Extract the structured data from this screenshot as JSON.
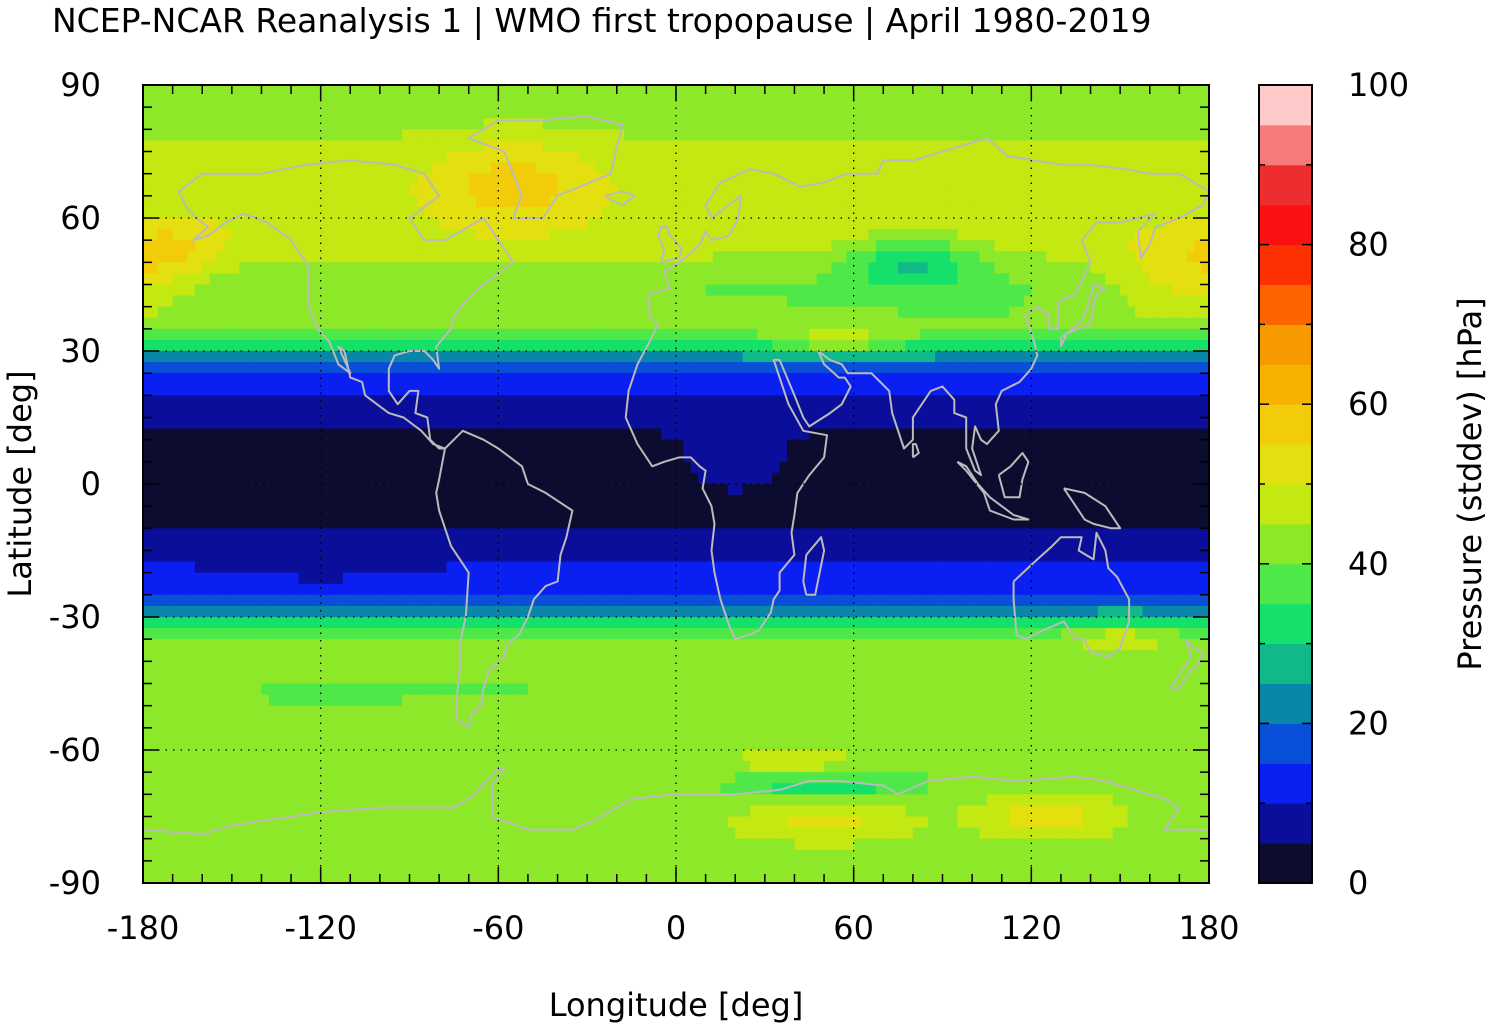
{
  "chart_data": {
    "type": "heatmap",
    "title": "NCEP-NCAR Reanalysis 1 | WMO first tropopause | April 1980-2019",
    "xlabel": "Longitude [deg]",
    "ylabel": "Latitude [deg]",
    "colorbar_label": "Pressure (stddev) [hPa]",
    "xlim": [
      -180,
      180
    ],
    "ylim": [
      -90,
      90
    ],
    "x_ticks": [
      -180,
      -120,
      -60,
      0,
      60,
      120,
      180
    ],
    "y_ticks": [
      90,
      60,
      30,
      0,
      -30,
      -60,
      -90
    ],
    "colorbar_range": [
      0,
      100
    ],
    "colorbar_ticks": [
      0,
      20,
      40,
      60,
      80,
      100
    ],
    "grid": true,
    "coastlines": true,
    "latitudes": [
      85,
      75,
      65,
      55,
      45,
      35,
      25,
      15,
      5,
      -5,
      -15,
      -25,
      -35,
      -45,
      -55,
      -65,
      -75,
      -85
    ],
    "zonal_mean_stddev": [
      42,
      46,
      48,
      48,
      40,
      40,
      14,
      6,
      3,
      3,
      8,
      14,
      42,
      40,
      40,
      42,
      44,
      42
    ],
    "colormap": [
      {
        "from": 0,
        "to": 5,
        "color": "#0c0c30"
      },
      {
        "from": 5,
        "to": 10,
        "color": "#0a0e9a"
      },
      {
        "from": 10,
        "to": 15,
        "color": "#0a1ff2"
      },
      {
        "from": 15,
        "to": 20,
        "color": "#0a4fd8"
      },
      {
        "from": 20,
        "to": 25,
        "color": "#0a86a8"
      },
      {
        "from": 25,
        "to": 30,
        "color": "#10b88a"
      },
      {
        "from": 30,
        "to": 35,
        "color": "#14e06a"
      },
      {
        "from": 35,
        "to": 40,
        "color": "#4ee848"
      },
      {
        "from": 40,
        "to": 45,
        "color": "#8ee82a"
      },
      {
        "from": 45,
        "to": 50,
        "color": "#c4e812"
      },
      {
        "from": 50,
        "to": 55,
        "color": "#e4e010"
      },
      {
        "from": 55,
        "to": 60,
        "color": "#f2cc08"
      },
      {
        "from": 60,
        "to": 65,
        "color": "#f7b200"
      },
      {
        "from": 65,
        "to": 70,
        "color": "#f79a00"
      },
      {
        "from": 70,
        "to": 75,
        "color": "#fc6400"
      },
      {
        "from": 75,
        "to": 80,
        "color": "#fc3000"
      },
      {
        "from": 80,
        "to": 85,
        "color": "#fa1212"
      },
      {
        "from": 85,
        "to": 90,
        "color": "#ee2e2e"
      },
      {
        "from": 90,
        "to": 95,
        "color": "#f67a7a"
      },
      {
        "from": 95,
        "to": 100,
        "color": "#ffcaca"
      }
    ],
    "colors": {
      "coastline": "#bbbbbb",
      "grid": "#000000"
    }
  }
}
